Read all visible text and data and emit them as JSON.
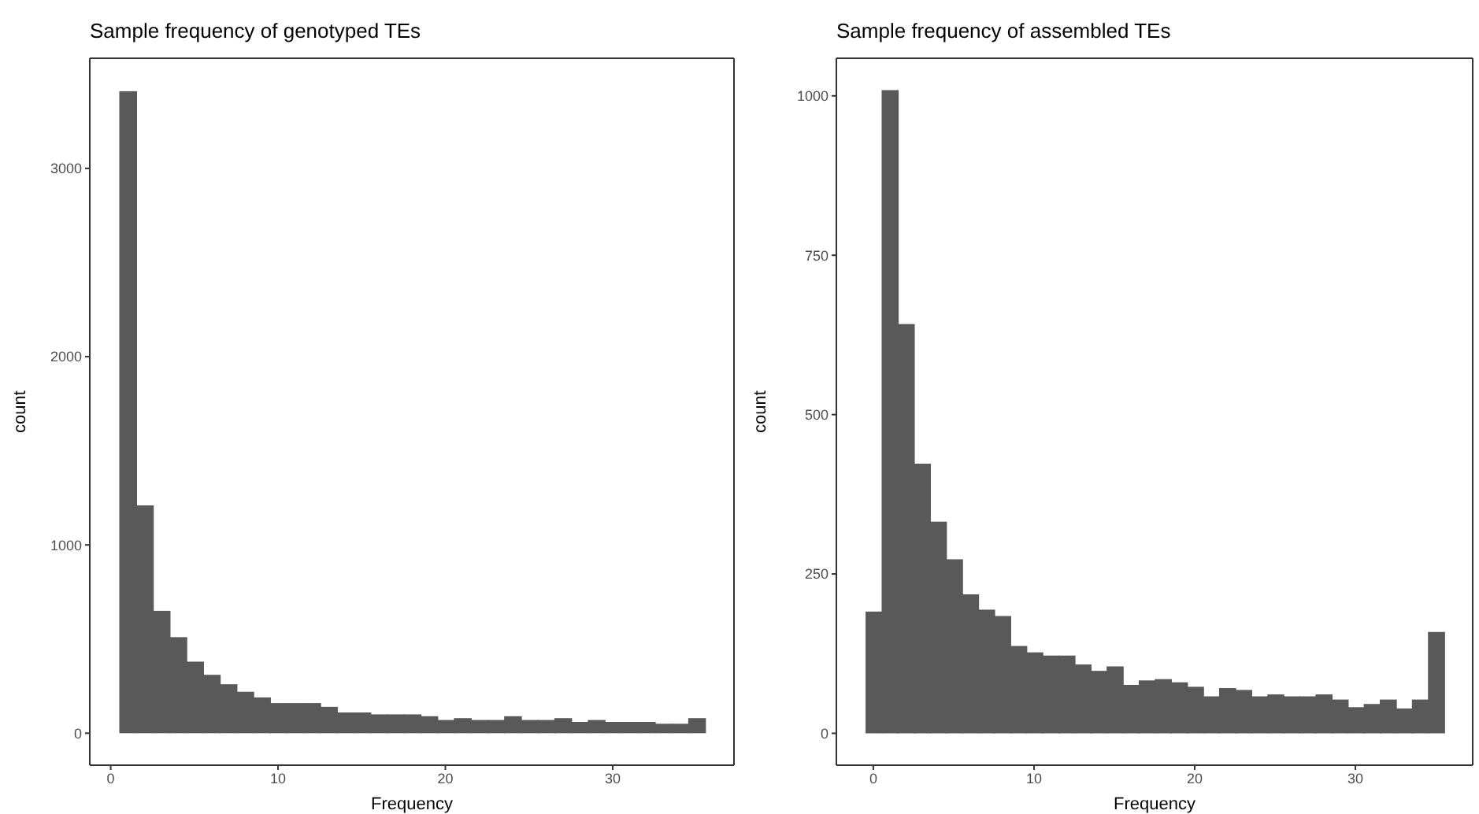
{
  "chart_data": [
    {
      "type": "histogram",
      "title": "Sample frequency of genotyped TEs",
      "xlabel": "Frequency",
      "ylabel": "count",
      "color": "#595959",
      "bins": [
        0.5,
        1.5,
        2.5,
        3.5,
        4.5,
        5.5,
        6.5,
        7.5,
        8.5,
        9.5,
        10.5,
        11.5,
        12.5,
        13.5,
        14.5,
        15.5,
        16.5,
        17.5,
        18.5,
        19.5,
        20.5,
        21.5,
        22.5,
        23.5,
        24.5,
        25.5,
        26.5,
        27.5,
        28.5,
        29.5,
        30.5,
        31.5,
        32.5,
        33.5,
        34.5,
        35.5
      ],
      "values": [
        3410,
        1210,
        650,
        510,
        380,
        310,
        260,
        220,
        190,
        160,
        160,
        160,
        140,
        110,
        110,
        100,
        100,
        100,
        90,
        70,
        80,
        70,
        70,
        90,
        70,
        70,
        80,
        60,
        70,
        60,
        60,
        60,
        50,
        50,
        80
      ],
      "xlim": [
        -1.25,
        37.25
      ],
      "ylim": [
        -170,
        3585
      ],
      "xticks": [
        0,
        10,
        20,
        30
      ],
      "yticks": [
        0,
        1000,
        2000,
        3000
      ]
    },
    {
      "type": "histogram",
      "title": "Sample frequency of assembled TEs",
      "xlabel": "Frequency",
      "ylabel": "count",
      "color": "#595959",
      "bins": [
        -0.5,
        0.5,
        1.5,
        2.5,
        3.5,
        4.5,
        5.5,
        6.5,
        7.5,
        8.5,
        9.5,
        10.5,
        11.5,
        12.5,
        13.5,
        14.5,
        15.5,
        16.5,
        17.5,
        18.5,
        19.5,
        20.5,
        21.5,
        22.5,
        23.5,
        24.5,
        25.5,
        26.5,
        27.5,
        28.5,
        29.5,
        30.5,
        31.5,
        32.5,
        33.5,
        34.5,
        35.5
      ],
      "values": [
        191,
        1009,
        642,
        423,
        332,
        273,
        218,
        194,
        184,
        137,
        127,
        122,
        122,
        108,
        98,
        105,
        76,
        83,
        85,
        80,
        73,
        58,
        71,
        68,
        58,
        61,
        58,
        58,
        61,
        53,
        41,
        46,
        53,
        39,
        53,
        159
      ],
      "xlim": [
        -2.3,
        37.3
      ],
      "ylim": [
        -50,
        1059
      ],
      "xticks": [
        0,
        10,
        20,
        30
      ],
      "yticks": [
        0,
        250,
        500,
        750,
        1000
      ]
    }
  ]
}
